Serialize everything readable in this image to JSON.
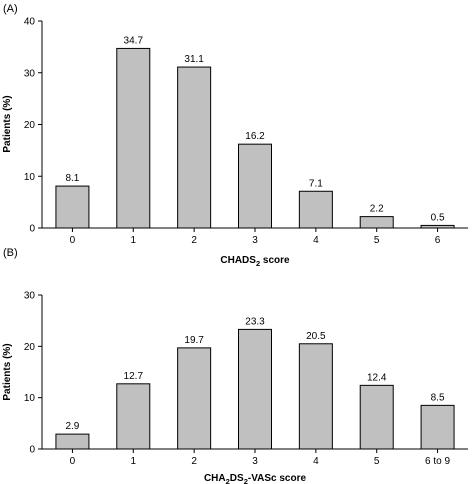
{
  "chart_data": [
    {
      "type": "bar",
      "panel_label": "(A)",
      "categories": [
        "0",
        "1",
        "2",
        "3",
        "4",
        "5",
        "6"
      ],
      "values": [
        8.1,
        34.7,
        31.1,
        16.2,
        7.1,
        2.2,
        0.5
      ],
      "data_labels": [
        "8.1",
        "34.7",
        "31.1",
        "16.2",
        "7.1",
        "2.2",
        "0.5"
      ],
      "ylabel": "Patients (%)",
      "xlabel_parts": [
        {
          "text": "CHADS",
          "sub": false
        },
        {
          "text": "2",
          "sub": true
        },
        {
          "text": " score",
          "sub": false
        }
      ],
      "ylim": [
        0,
        40
      ],
      "yticks": [
        0,
        10,
        20,
        30,
        40
      ],
      "bar_color": "#c0c0c0",
      "grid": false
    },
    {
      "type": "bar",
      "panel_label": "(B)",
      "categories": [
        "0",
        "1",
        "2",
        "3",
        "4",
        "5",
        "6 to 9"
      ],
      "values": [
        2.9,
        12.7,
        19.7,
        23.3,
        20.5,
        12.4,
        8.5
      ],
      "data_labels": [
        "2.9",
        "12.7",
        "19.7",
        "23.3",
        "20.5",
        "12.4",
        "8.5"
      ],
      "ylabel": "Patients (%)",
      "xlabel_parts": [
        {
          "text": "CHA",
          "sub": false
        },
        {
          "text": "2",
          "sub": true
        },
        {
          "text": "DS",
          "sub": false
        },
        {
          "text": "2",
          "sub": true
        },
        {
          "text": "-VASc score",
          "sub": false
        }
      ],
      "ylim": [
        0,
        30
      ],
      "yticks": [
        0,
        10,
        20,
        30
      ],
      "bar_color": "#c0c0c0",
      "grid": false
    }
  ]
}
